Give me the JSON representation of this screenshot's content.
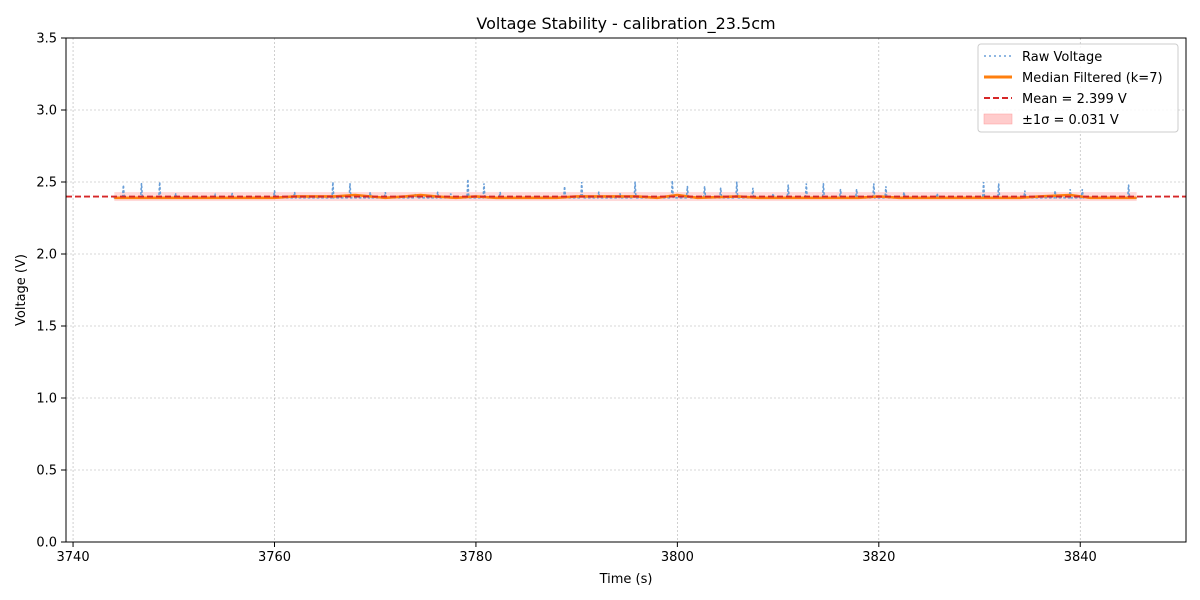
{
  "chart_data": {
    "type": "line",
    "title": "Voltage Stability - calibration_23.5cm",
    "xlabel": "Time (s)",
    "ylabel": "Voltage (V)",
    "xlim": [
      3739.3,
      3850.5
    ],
    "ylim": [
      0.0,
      3.5
    ],
    "x_ticks": [
      3740,
      3760,
      3780,
      3800,
      3820,
      3840
    ],
    "y_ticks": [
      0.0,
      0.5,
      1.0,
      1.5,
      2.0,
      2.5,
      3.0,
      3.5
    ],
    "grid": true,
    "legend_position": "top-right",
    "x_range": [
      3744.1,
      3845.6
    ],
    "mean": 2.399,
    "sigma": 0.031,
    "series": [
      {
        "name": "Raw Voltage",
        "style": "dotted",
        "color": "#6a9fd8",
        "baseline": 2.39,
        "spikes": [
          [
            3745.0,
            2.48
          ],
          [
            3746.8,
            2.49
          ],
          [
            3748.6,
            2.5
          ],
          [
            3750.2,
            2.42
          ],
          [
            3752.0,
            2.41
          ],
          [
            3754.1,
            2.41
          ],
          [
            3755.8,
            2.42
          ],
          [
            3760.0,
            2.44
          ],
          [
            3762.0,
            2.43
          ],
          [
            3765.8,
            2.5
          ],
          [
            3767.5,
            2.49
          ],
          [
            3769.5,
            2.43
          ],
          [
            3771.0,
            2.43
          ],
          [
            3774.0,
            2.42
          ],
          [
            3776.2,
            2.43
          ],
          [
            3777.5,
            2.42
          ],
          [
            3779.2,
            2.52
          ],
          [
            3780.8,
            2.49
          ],
          [
            3782.4,
            2.43
          ],
          [
            3788.8,
            2.47
          ],
          [
            3790.5,
            2.5
          ],
          [
            3792.2,
            2.43
          ],
          [
            3794.3,
            2.42
          ],
          [
            3795.8,
            2.5
          ],
          [
            3799.5,
            2.51
          ],
          [
            3801.0,
            2.47
          ],
          [
            3802.7,
            2.47
          ],
          [
            3804.3,
            2.46
          ],
          [
            3805.9,
            2.5
          ],
          [
            3807.5,
            2.46
          ],
          [
            3809.5,
            2.42
          ],
          [
            3811.0,
            2.48
          ],
          [
            3812.8,
            2.49
          ],
          [
            3814.5,
            2.49
          ],
          [
            3816.2,
            2.45
          ],
          [
            3817.8,
            2.45
          ],
          [
            3819.5,
            2.49
          ],
          [
            3820.7,
            2.47
          ],
          [
            3822.5,
            2.43
          ],
          [
            3825.8,
            2.42
          ],
          [
            3830.4,
            2.5
          ],
          [
            3831.9,
            2.49
          ],
          [
            3834.5,
            2.44
          ],
          [
            3837.5,
            2.44
          ],
          [
            3839.0,
            2.45
          ],
          [
            3840.2,
            2.45
          ],
          [
            3844.8,
            2.48
          ]
        ]
      },
      {
        "name": "Median Filtered (k=7)",
        "style": "solid",
        "color": "#ff7f0e",
        "points": [
          [
            3744.1,
            2.39
          ],
          [
            3760.0,
            2.39
          ],
          [
            3762.0,
            2.4
          ],
          [
            3766.0,
            2.4
          ],
          [
            3768.0,
            2.41
          ],
          [
            3771.0,
            2.39
          ],
          [
            3773.0,
            2.4
          ],
          [
            3774.5,
            2.41
          ],
          [
            3776.0,
            2.4
          ],
          [
            3778.0,
            2.39
          ],
          [
            3780.0,
            2.4
          ],
          [
            3782.0,
            2.39
          ],
          [
            3788.0,
            2.39
          ],
          [
            3790.0,
            2.4
          ],
          [
            3796.0,
            2.4
          ],
          [
            3798.0,
            2.39
          ],
          [
            3800.0,
            2.41
          ],
          [
            3802.0,
            2.39
          ],
          [
            3806.0,
            2.4
          ],
          [
            3808.0,
            2.39
          ],
          [
            3818.0,
            2.39
          ],
          [
            3820.0,
            2.4
          ],
          [
            3822.0,
            2.39
          ],
          [
            3834.0,
            2.39
          ],
          [
            3836.0,
            2.4
          ],
          [
            3839.0,
            2.41
          ],
          [
            3841.0,
            2.39
          ],
          [
            3845.6,
            2.39
          ]
        ]
      },
      {
        "name": "Mean = 2.399 V",
        "style": "dashed",
        "color": "#d62728"
      },
      {
        "name": "±1σ = 0.031 V",
        "style": "band",
        "color": "#ffb3b3"
      }
    ]
  }
}
